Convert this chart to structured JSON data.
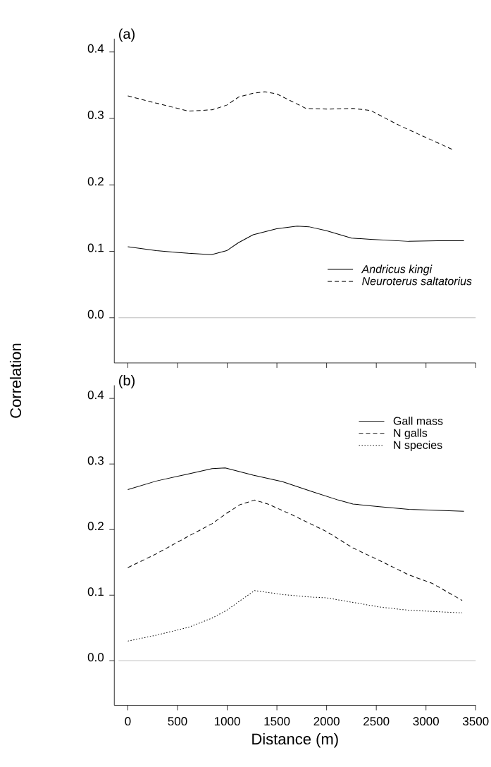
{
  "chart_data": [
    {
      "type": "line",
      "title": "(a)",
      "ylabel": "Correlation",
      "xlim": [
        -136,
        3500
      ],
      "ylim": [
        -0.068,
        0.42
      ],
      "xticks": [
        0,
        500,
        1000,
        1500,
        2000,
        2500,
        3000,
        3500
      ],
      "yticks": [
        {
          "value": 0,
          "label": "0.0"
        },
        0.1,
        0.2,
        0.3,
        0.4
      ],
      "tick_labels": "y",
      "legend": "right",
      "grid": false,
      "marker": "none",
      "ref_lines": [
        {
          "axis": "y",
          "value": 0,
          "color": "#bebebe"
        }
      ],
      "series": [
        {
          "name": "Andricus kingi",
          "color": "#000000",
          "line_style": "solid",
          "x": [
            0,
            286,
            611,
            842,
            995,
            1113,
            1261,
            1497,
            1704,
            1822,
            1999,
            2250,
            2442,
            2826,
            3122,
            3382
          ],
          "values": [
            0.107,
            0.101,
            0.097,
            0.095,
            0.101,
            0.113,
            0.125,
            0.134,
            0.138,
            0.137,
            0.131,
            0.12,
            0.118,
            0.115,
            0.116,
            0.116
          ]
        },
        {
          "name": "Neuroterus saltatorius",
          "color": "#000000",
          "line_style": "dashed",
          "x": [
            0,
            286,
            611,
            848,
            995,
            1113,
            1261,
            1379,
            1497,
            1645,
            1793,
            1999,
            2265,
            2442,
            2738,
            3004,
            3284
          ],
          "values": [
            0.334,
            0.323,
            0.311,
            0.313,
            0.32,
            0.332,
            0.338,
            0.34,
            0.337,
            0.326,
            0.315,
            0.314,
            0.315,
            0.312,
            0.289,
            0.271,
            0.252
          ]
        }
      ]
    },
    {
      "type": "line",
      "title": "(b)",
      "xlabel": "Distance (m)",
      "xlim": [
        -136,
        3500
      ],
      "ylim": [
        -0.068,
        0.42
      ],
      "xticks": [
        0,
        500,
        1000,
        1500,
        2000,
        2500,
        3000,
        3500
      ],
      "yticks": [
        {
          "value": 0,
          "label": "0.0"
        },
        0.1,
        0.2,
        0.3,
        0.4
      ],
      "legend": "top right",
      "grid": false,
      "marker": "none",
      "ref_lines": [
        {
          "axis": "y",
          "value": 0,
          "color": "#bebebe"
        }
      ],
      "series": [
        {
          "name": "Gall mass",
          "color": "#000000",
          "line_style": "solid",
          "x": [
            0,
            286,
            611,
            848,
            980,
            1261,
            1556,
            1852,
            2118,
            2265,
            2531,
            2826,
            3382
          ],
          "values": [
            0.261,
            0.274,
            0.285,
            0.293,
            0.294,
            0.283,
            0.273,
            0.258,
            0.245,
            0.239,
            0.235,
            0.231,
            0.228
          ]
        },
        {
          "name": "N galls",
          "color": "#000000",
          "line_style": "dashed",
          "x": [
            0,
            286,
            611,
            848,
            995,
            1128,
            1276,
            1409,
            1645,
            1999,
            2265,
            2531,
            2826,
            3063,
            3364
          ],
          "values": [
            0.142,
            0.163,
            0.19,
            0.209,
            0.225,
            0.238,
            0.245,
            0.239,
            0.223,
            0.197,
            0.172,
            0.153,
            0.131,
            0.118,
            0.092
          ]
        },
        {
          "name": "N species",
          "color": "#000000",
          "line_style": "dotted",
          "x": [
            0,
            286,
            611,
            848,
            995,
            1143,
            1276,
            1556,
            1852,
            1999,
            2265,
            2531,
            2826,
            3364
          ],
          "values": [
            0.03,
            0.039,
            0.051,
            0.065,
            0.077,
            0.093,
            0.107,
            0.101,
            0.097,
            0.096,
            0.089,
            0.082,
            0.077,
            0.073
          ]
        }
      ]
    }
  ]
}
